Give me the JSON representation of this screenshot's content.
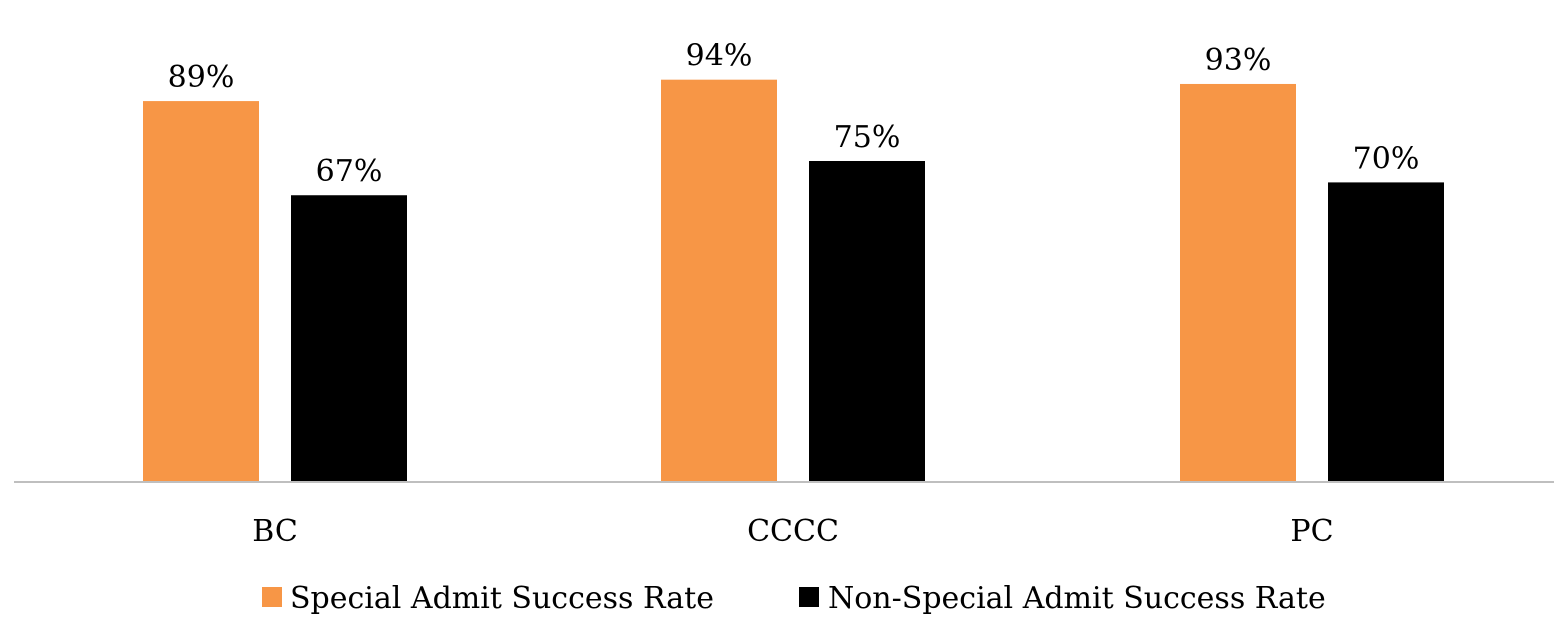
{
  "chart_data": {
    "type": "bar",
    "categories": [
      "BC",
      "CCCC",
      "PC"
    ],
    "series": [
      {
        "name": "Special Admit Success Rate",
        "values": [
          89,
          94,
          93
        ],
        "labels": [
          "89%",
          "94%",
          "93%"
        ],
        "color": "#F79646"
      },
      {
        "name": "Non-Special Admit Success Rate",
        "values": [
          67,
          75,
          70
        ],
        "labels": [
          "67%",
          "75%",
          "70%"
        ],
        "color": "#000000"
      }
    ],
    "ylim": [
      0,
      100
    ],
    "gridlines": false,
    "legend_position": "bottom",
    "axis_color": "#BFBFBF"
  }
}
